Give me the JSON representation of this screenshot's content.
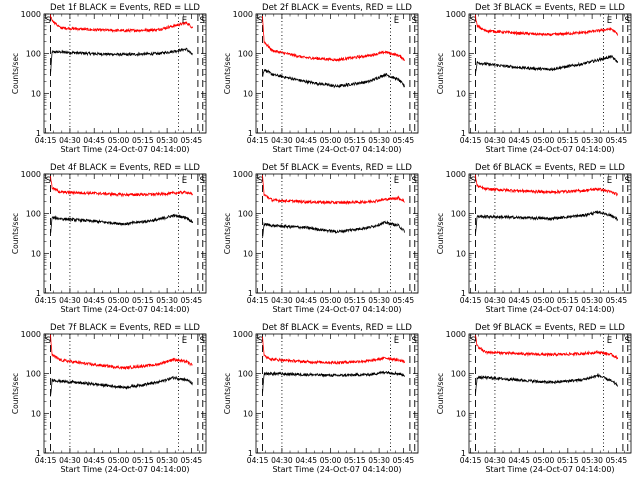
{
  "figure": {
    "xlabel": "Start Time (24-Oct-07 04:14:00)",
    "ylabel": "Counts/sec",
    "xtick_labels": [
      "04:15",
      "04:30",
      "04:45",
      "05:00",
      "05:15",
      "05:30",
      "05:45"
    ],
    "ytick_labels": [
      "1",
      "10",
      "100",
      "1000"
    ],
    "marker_labels": [
      "S",
      "E",
      "S"
    ],
    "colors": {
      "events": "#000000",
      "lld": "#ff0000"
    }
  },
  "chart_data": [
    {
      "type": "line",
      "title": "Det 1f BLACK = Events, RED = LLD",
      "yscale": "log",
      "ylim": [
        1,
        1000
      ],
      "x_unit": "minutes after 04:14:00",
      "xlim": [
        0,
        100
      ],
      "series": [
        {
          "color": "black",
          "x": [
            4,
            5,
            10,
            30,
            50,
            70,
            80,
            88,
            92
          ],
          "y": [
            30,
            110,
            110,
            100,
            95,
            100,
            115,
            130,
            90
          ]
        },
        {
          "color": "red",
          "x": [
            4,
            5,
            10,
            30,
            50,
            70,
            80,
            88,
            92
          ],
          "y": [
            900,
            700,
            450,
            400,
            380,
            400,
            500,
            600,
            450
          ]
        }
      ]
    },
    {
      "type": "line",
      "title": "Det 2f BLACK = Events, RED = LLD",
      "yscale": "log",
      "ylim": [
        1,
        1000
      ],
      "x_unit": "minutes after 04:14:00",
      "xlim": [
        0,
        100
      ],
      "series": [
        {
          "color": "black",
          "x": [
            4,
            5,
            10,
            30,
            50,
            70,
            80,
            88,
            92
          ],
          "y": [
            25,
            40,
            30,
            20,
            15,
            20,
            30,
            22,
            15
          ]
        },
        {
          "color": "red",
          "x": [
            4,
            5,
            10,
            30,
            50,
            70,
            80,
            88,
            92
          ],
          "y": [
            900,
            200,
            120,
            80,
            70,
            90,
            110,
            90,
            70
          ]
        }
      ]
    },
    {
      "type": "line",
      "title": "Det 3f BLACK = Events, RED = LLD",
      "yscale": "log",
      "ylim": [
        1,
        1000
      ],
      "x_unit": "minutes after 04:14:00",
      "xlim": [
        0,
        100
      ],
      "series": [
        {
          "color": "black",
          "x": [
            4,
            5,
            10,
            30,
            50,
            70,
            80,
            88,
            92
          ],
          "y": [
            30,
            60,
            55,
            45,
            40,
            55,
            70,
            85,
            60
          ]
        },
        {
          "color": "red",
          "x": [
            4,
            5,
            10,
            30,
            50,
            70,
            80,
            88,
            92
          ],
          "y": [
            900,
            500,
            380,
            330,
            300,
            340,
            380,
            420,
            300
          ]
        }
      ]
    },
    {
      "type": "line",
      "title": "Det 4f BLACK = Events, RED = LLD",
      "yscale": "log",
      "ylim": [
        1,
        1000
      ],
      "x_unit": "minutes after 04:14:00",
      "xlim": [
        0,
        100
      ],
      "series": [
        {
          "color": "black",
          "x": [
            4,
            5,
            10,
            30,
            50,
            70,
            80,
            88,
            92
          ],
          "y": [
            30,
            80,
            75,
            65,
            55,
            70,
            90,
            80,
            60
          ]
        },
        {
          "color": "red",
          "x": [
            4,
            5,
            10,
            30,
            50,
            70,
            80,
            88,
            92
          ],
          "y": [
            900,
            450,
            350,
            330,
            300,
            310,
            330,
            350,
            300
          ]
        }
      ]
    },
    {
      "type": "line",
      "title": "Det 5f BLACK = Events, RED = LLD",
      "yscale": "log",
      "ylim": [
        1,
        1000
      ],
      "x_unit": "minutes after 04:14:00",
      "xlim": [
        0,
        100
      ],
      "series": [
        {
          "color": "black",
          "x": [
            4,
            5,
            10,
            30,
            50,
            70,
            80,
            88,
            92
          ],
          "y": [
            25,
            55,
            50,
            45,
            35,
            45,
            60,
            50,
            35
          ]
        },
        {
          "color": "red",
          "x": [
            4,
            5,
            10,
            30,
            50,
            70,
            80,
            88,
            92
          ],
          "y": [
            900,
            300,
            220,
            200,
            190,
            200,
            230,
            250,
            200
          ]
        }
      ]
    },
    {
      "type": "line",
      "title": "Det 6f BLACK = Events, RED = LLD",
      "yscale": "log",
      "ylim": [
        1,
        1000
      ],
      "x_unit": "minutes after 04:14:00",
      "xlim": [
        0,
        100
      ],
      "series": [
        {
          "color": "black",
          "x": [
            4,
            5,
            10,
            30,
            50,
            70,
            80,
            88,
            92
          ],
          "y": [
            30,
            85,
            85,
            80,
            75,
            90,
            110,
            90,
            70
          ]
        },
        {
          "color": "red",
          "x": [
            4,
            5,
            10,
            30,
            50,
            70,
            80,
            88,
            92
          ],
          "y": [
            900,
            500,
            420,
            380,
            350,
            380,
            420,
            350,
            300
          ]
        }
      ]
    },
    {
      "type": "line",
      "title": "Det 7f BLACK = Events, RED = LLD",
      "yscale": "log",
      "ylim": [
        1,
        1000
      ],
      "x_unit": "minutes after 04:14:00",
      "xlim": [
        0,
        100
      ],
      "series": [
        {
          "color": "black",
          "x": [
            4,
            5,
            10,
            30,
            50,
            70,
            80,
            88,
            92
          ],
          "y": [
            25,
            70,
            65,
            55,
            45,
            60,
            80,
            70,
            55
          ]
        },
        {
          "color": "red",
          "x": [
            4,
            5,
            10,
            30,
            50,
            70,
            80,
            88,
            92
          ],
          "y": [
            900,
            300,
            220,
            170,
            140,
            170,
            230,
            200,
            160
          ]
        }
      ]
    },
    {
      "type": "line",
      "title": "Det 8f BLACK = Events, RED = LLD",
      "yscale": "log",
      "ylim": [
        1,
        1000
      ],
      "x_unit": "minutes after 04:14:00",
      "xlim": [
        0,
        100
      ],
      "series": [
        {
          "color": "black",
          "x": [
            4,
            5,
            10,
            30,
            50,
            70,
            80,
            88,
            92
          ],
          "y": [
            30,
            100,
            100,
            95,
            90,
            95,
            110,
            100,
            90
          ]
        },
        {
          "color": "red",
          "x": [
            4,
            5,
            10,
            30,
            50,
            70,
            80,
            88,
            92
          ],
          "y": [
            900,
            280,
            230,
            200,
            190,
            210,
            250,
            220,
            200
          ]
        }
      ]
    },
    {
      "type": "line",
      "title": "Det 9f BLACK = Events, RED = LLD",
      "yscale": "log",
      "ylim": [
        1,
        1000
      ],
      "x_unit": "minutes after 04:14:00",
      "xlim": [
        0,
        100
      ],
      "series": [
        {
          "color": "black",
          "x": [
            4,
            5,
            10,
            30,
            50,
            70,
            80,
            88,
            92
          ],
          "y": [
            30,
            80,
            80,
            70,
            60,
            70,
            90,
            65,
            50
          ]
        },
        {
          "color": "red",
          "x": [
            4,
            5,
            10,
            30,
            50,
            70,
            80,
            88,
            92
          ],
          "y": [
            900,
            500,
            350,
            320,
            300,
            320,
            350,
            300,
            250
          ]
        }
      ]
    }
  ]
}
